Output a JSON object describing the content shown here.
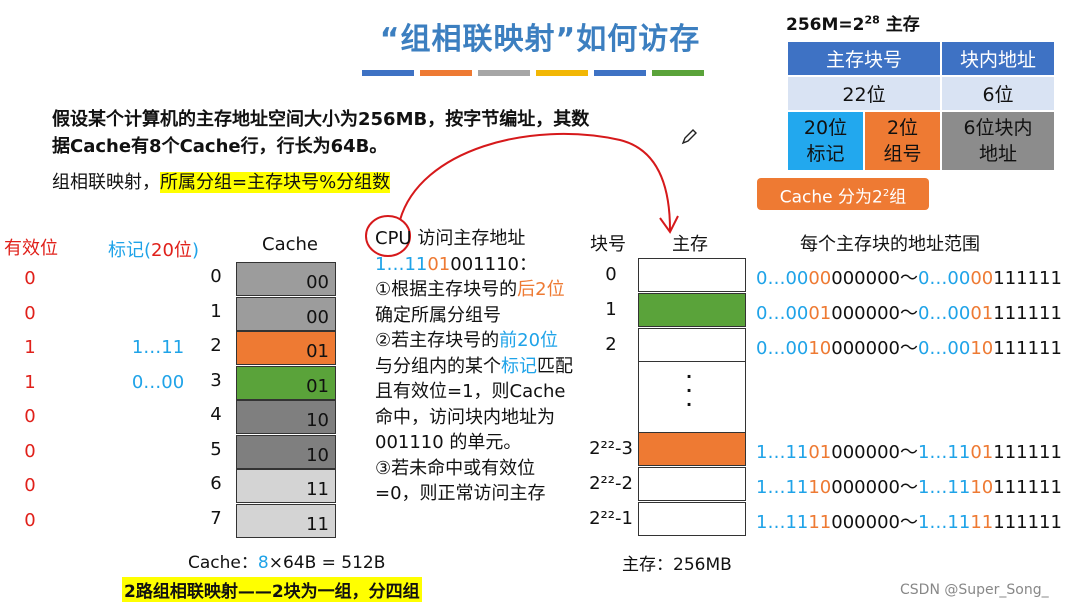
{
  "title": "“组相联映射”如何访存",
  "title_bar_colors": [
    "#3e72c4",
    "#ee7a33",
    "#a6a6a6",
    "#f2b705",
    "#3e72c4",
    "#5aa33a"
  ],
  "intro_text": "假设某个计算机的主存地址空间大小为256MB，按字节编址，其数据Cache有8个Cache行，行长为64B。",
  "mapping_prefix": "组相联映射，",
  "mapping_highlight": "所属分组=主存块号%分组数",
  "address": {
    "title": "256M=2²⁸ 主存",
    "header_block": "主存块号",
    "header_offset": "块内地址",
    "bits_block": "22位",
    "bits_offset": "6位",
    "tag_part": "20位\n标记",
    "group_part": "2位\n组号",
    "offset_part": "6位块内\n地址",
    "badge": "Cache 分为2²组"
  },
  "cache": {
    "valid_header": "有效位",
    "tag_header": "标记(20位)",
    "cache_header": "Cache",
    "rows": [
      {
        "idx": "0",
        "valid": "0",
        "tag": "",
        "content": "00",
        "color": "#9c9c9c"
      },
      {
        "idx": "1",
        "valid": "0",
        "tag": "",
        "content": "00",
        "color": "#9c9c9c"
      },
      {
        "idx": "2",
        "valid": "1",
        "tag": "1…11",
        "content": "01",
        "color": "#ee7a33"
      },
      {
        "idx": "3",
        "valid": "1",
        "tag": "0…00",
        "content": "01",
        "color": "#5aa33a"
      },
      {
        "idx": "4",
        "valid": "0",
        "tag": "",
        "content": "10",
        "color": "#7f7f7f"
      },
      {
        "idx": "5",
        "valid": "0",
        "tag": "",
        "content": "10",
        "color": "#7f7f7f"
      },
      {
        "idx": "6",
        "valid": "0",
        "tag": "",
        "content": "11",
        "color": "#d4d4d4"
      },
      {
        "idx": "7",
        "valid": "0",
        "tag": "",
        "content": "11",
        "color": "#d4d4d4"
      }
    ],
    "footer": "Cache：",
    "footer_count": "8",
    "footer_rest": "×64B = 512B",
    "summary": "2路组相联映射——2块为一组，分四组"
  },
  "cpu": {
    "l1": "CPU 访问主存地址",
    "addr_a": "1…11",
    "addr_b": "01",
    "addr_c": "001110",
    "addr_tail": "：",
    "s1a": "①根据主存块号的",
    "s1b": "后2位",
    "s1c": "确定所属分组号",
    "s2a": "②若主存块号的",
    "s2b": "前20位",
    "s2c": "与分组内的某个",
    "s2d": "标记",
    "s2e": "匹配且有效位=1，则Cache命中，访问块内地址为 001110 的单元。",
    "s3": "③若未命中或有效位=0，则正常访问主存"
  },
  "memory": {
    "block_header": "块号",
    "mem_header": "主存",
    "range_header": "每个主存块的地址范围",
    "dots": "·\n·\n·",
    "footer": "主存：256MB",
    "rows": [
      {
        "no": "0",
        "color": "#ffffff",
        "r1a": "0…00",
        "r1b": "00",
        "r1c": "000000",
        "sep": "～",
        "r2a": "0…00",
        "r2b": "00",
        "r2c": "111111"
      },
      {
        "no": "1",
        "color": "#5aa33a",
        "r1a": "0…00",
        "r1b": "01",
        "r1c": "000000",
        "sep": "～",
        "r2a": "0…00",
        "r2b": "01",
        "r2c": "111111"
      },
      {
        "no": "2",
        "color": "#ffffff",
        "r1a": "0…00",
        "r1b": "10",
        "r1c": "000000",
        "sep": "～",
        "r2a": "0…00",
        "r2b": "10",
        "r2c": "111111"
      },
      {
        "no": "2²²-3",
        "color": "#ee7a33",
        "r1a": "1…11",
        "r1b": "01",
        "r1c": "000000",
        "sep": "～",
        "r2a": "1…11",
        "r2b": "01",
        "r2c": "111111"
      },
      {
        "no": "2²²-2",
        "color": "#ffffff",
        "r1a": "1…11",
        "r1b": "10",
        "r1c": "000000",
        "sep": "～",
        "r2a": "1…11",
        "r2b": "10",
        "r2c": "111111"
      },
      {
        "no": "2²²-1",
        "color": "#ffffff",
        "r1a": "1…11",
        "r1b": "11",
        "r1c": "000000",
        "sep": "～",
        "r2a": "1…11",
        "r2b": "11",
        "r2c": "111111"
      }
    ]
  },
  "watermark": "CSDN @Super_Song_"
}
